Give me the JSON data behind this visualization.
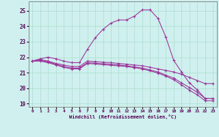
{
  "xlabel": "Windchill (Refroidissement éolien,°C)",
  "background_color": "#cff0ee",
  "line_color": "#993399",
  "grid_color": "#aaddcc",
  "xlim": [
    -0.5,
    23.5
  ],
  "ylim": [
    18.8,
    25.6
  ],
  "yticks": [
    19,
    20,
    21,
    22,
    23,
    24,
    25
  ],
  "xticks": [
    0,
    1,
    2,
    3,
    4,
    5,
    6,
    7,
    8,
    9,
    10,
    11,
    12,
    13,
    14,
    15,
    16,
    17,
    18,
    19,
    20,
    21,
    22,
    23
  ],
  "series": [
    {
      "x": [
        0,
        1,
        2,
        3,
        4,
        5,
        6,
        7,
        8,
        9,
        10,
        11,
        12,
        13,
        14,
        15,
        16,
        17,
        18,
        19,
        20,
        21,
        22,
        23
      ],
      "y": [
        21.75,
        21.9,
        22.0,
        21.9,
        21.75,
        21.65,
        21.65,
        22.5,
        23.25,
        23.8,
        24.2,
        24.4,
        24.4,
        24.65,
        25.05,
        25.05,
        24.5,
        23.3,
        21.8,
        21.05,
        20.35,
        19.9,
        19.35,
        19.35
      ]
    },
    {
      "x": [
        0,
        1,
        2,
        3,
        4,
        5,
        6,
        7,
        8,
        9,
        10,
        11,
        12,
        13,
        14,
        15,
        16,
        17,
        18,
        19,
        20,
        21,
        22,
        23
      ],
      "y": [
        21.75,
        21.85,
        21.75,
        21.6,
        21.5,
        21.4,
        21.4,
        21.75,
        21.72,
        21.68,
        21.65,
        21.6,
        21.55,
        21.5,
        21.45,
        21.35,
        21.25,
        21.15,
        21.05,
        20.9,
        20.7,
        20.5,
        20.3,
        20.3
      ]
    },
    {
      "x": [
        0,
        1,
        2,
        3,
        4,
        5,
        6,
        7,
        8,
        9,
        10,
        11,
        12,
        13,
        14,
        15,
        16,
        17,
        18,
        19,
        20,
        21,
        22,
        23
      ],
      "y": [
        21.75,
        21.8,
        21.7,
        21.55,
        21.4,
        21.3,
        21.3,
        21.65,
        21.62,
        21.58,
        21.55,
        21.5,
        21.45,
        21.38,
        21.3,
        21.18,
        21.05,
        20.85,
        20.65,
        20.35,
        20.05,
        19.75,
        19.35,
        19.35
      ]
    },
    {
      "x": [
        0,
        1,
        2,
        3,
        4,
        5,
        6,
        7,
        8,
        9,
        10,
        11,
        12,
        13,
        14,
        15,
        16,
        17,
        18,
        19,
        20,
        21,
        22,
        23
      ],
      "y": [
        21.75,
        21.75,
        21.65,
        21.5,
        21.35,
        21.25,
        21.25,
        21.6,
        21.56,
        21.52,
        21.48,
        21.44,
        21.4,
        21.33,
        21.25,
        21.12,
        20.98,
        20.78,
        20.55,
        20.22,
        19.88,
        19.58,
        19.2,
        19.2
      ]
    }
  ]
}
